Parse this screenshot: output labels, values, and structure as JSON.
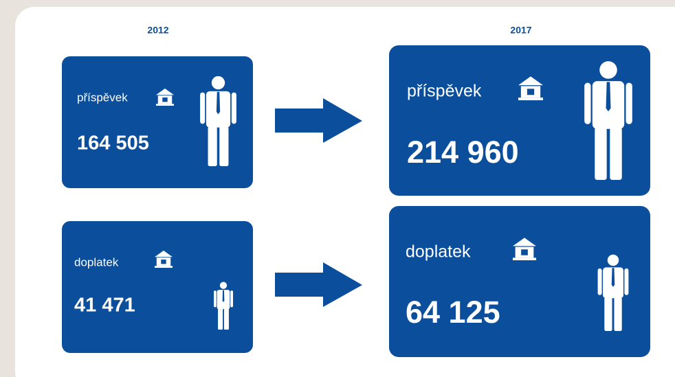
{
  "years": [
    "2012",
    "2017"
  ],
  "panels": [
    {
      "label": "příspěvek",
      "value": "164 505"
    },
    {
      "label": "doplatek",
      "value": "41 471"
    },
    {
      "label": "příspěvek",
      "value": "214 960"
    },
    {
      "label": "doplatek",
      "value": "64 125"
    }
  ]
}
